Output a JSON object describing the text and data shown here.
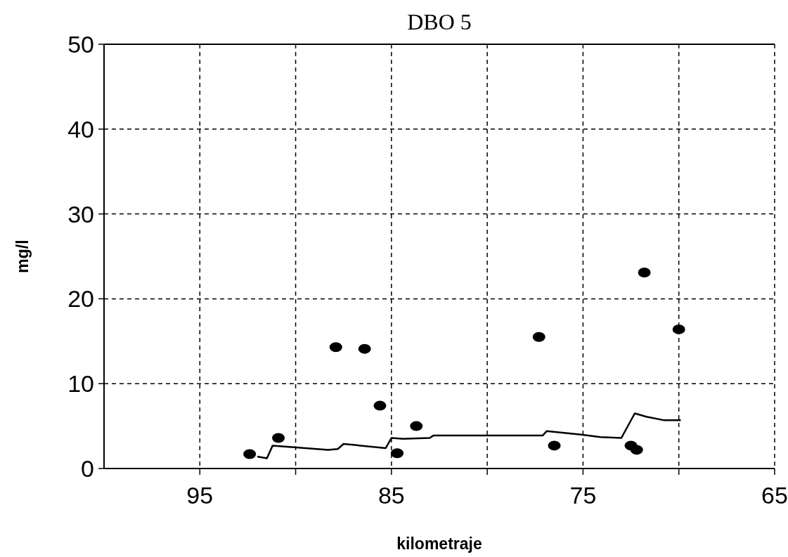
{
  "chart_data": {
    "type": "scatter",
    "title": "DBO 5",
    "xlabel": "kilometraje",
    "ylabel": "mg/l",
    "xlim": [
      100,
      65
    ],
    "ylim": [
      0,
      50
    ],
    "xticks": [
      95,
      {
        "value": 90,
        "label": null
      },
      85,
      {
        "value": 80,
        "label": null
      },
      75,
      {
        "value": 70,
        "label": null
      },
      65
    ],
    "yticks": [
      0,
      10,
      20,
      30,
      40,
      50
    ],
    "grid": true,
    "marker": "circle",
    "series": [
      {
        "color": "#000000",
        "x": [
          92.4,
          90.9,
          87.9,
          86.4,
          85.6,
          84.7,
          83.7,
          77.3,
          76.5,
          72.5,
          72.2,
          71.8,
          70.0
        ],
        "values": [
          1.7,
          3.6,
          14.3,
          14.1,
          7.4,
          1.8,
          5.0,
          15.5,
          2.7,
          2.7,
          2.2,
          23.1,
          16.4
        ]
      },
      {
        "type": "line",
        "color": "#000000",
        "marker": "none",
        "x": [
          92.0,
          91.5,
          91.2,
          90.7,
          88.3,
          87.8,
          87.5,
          85.3,
          85.0,
          84.4,
          83.0,
          82.8,
          77.1,
          76.9,
          75.1,
          74.1,
          73.0,
          72.3,
          71.7,
          70.8,
          69.9
        ],
        "values": [
          1.4,
          1.2,
          2.7,
          2.6,
          2.2,
          2.3,
          2.9,
          2.4,
          3.6,
          3.5,
          3.6,
          3.9,
          3.9,
          4.4,
          4.0,
          3.7,
          3.6,
          6.5,
          6.1,
          5.7,
          5.7
        ]
      }
    ]
  }
}
